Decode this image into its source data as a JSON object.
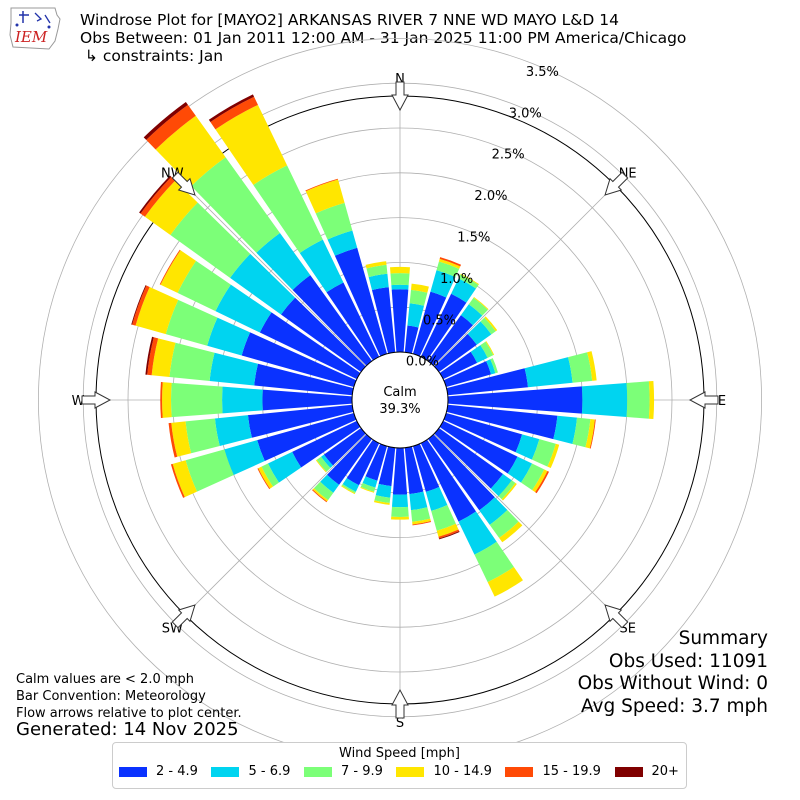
{
  "header": {
    "logo_text": "IEM",
    "title_line1": "Windrose Plot for [MAYO2] ARKANSAS RIVER 7 NNE WD MAYO L&D 14",
    "title_line2": "Obs Between: 01 Jan 2011 12:00 AM - 31 Jan 2025 11:00 PM America/Chicago",
    "title_line3": " ↳ constraints: Jan"
  },
  "notes": {
    "line1": "Calm values are < 2.0 mph",
    "line2": "Bar Convention: Meteorology",
    "line3": "Flow arrows relative to plot center.",
    "generated": "Generated: 14 Nov 2025"
  },
  "summary": {
    "heading": "Summary",
    "obs_used": "Obs Used: 11091",
    "obs_without_wind": "Obs Without Wind: 0",
    "avg_speed": "Avg Speed: 3.7 mph"
  },
  "legend": {
    "title": "Wind Speed [mph]",
    "items": [
      {
        "label": "2 - 4.9",
        "color": "#0a32ff"
      },
      {
        "label": "5 - 6.9",
        "color": "#00d4f0"
      },
      {
        "label": "7 - 9.9",
        "color": "#7cff78"
      },
      {
        "label": "10 - 14.9",
        "color": "#ffe600"
      },
      {
        "label": "15 - 19.9",
        "color": "#ff4a06"
      },
      {
        "label": "20+",
        "color": "#800000"
      }
    ]
  },
  "chart_data": {
    "type": "windrose",
    "calm_label": "Calm",
    "calm_value": "39.3%",
    "radial_ticks": [
      "0.0%",
      "0.5%",
      "1.0%",
      "1.5%",
      "2.0%",
      "2.5%",
      "3.0%",
      "3.5%"
    ],
    "radial_max": 3.5,
    "compass_labels": [
      "N",
      "NE",
      "E",
      "SE",
      "S",
      "SW",
      "W",
      "NW"
    ],
    "speed_bins": [
      "2 - 4.9",
      "5 - 6.9",
      "7 - 9.9",
      "10 - 14.9",
      "15 - 19.9",
      "20+"
    ],
    "colors": [
      "#0a32ff",
      "#00d4f0",
      "#7cff78",
      "#ffe600",
      "#ff4a06",
      "#800000"
    ],
    "directions": [
      0,
      10,
      20,
      30,
      40,
      50,
      60,
      70,
      80,
      90,
      100,
      110,
      120,
      130,
      140,
      150,
      160,
      170,
      180,
      190,
      200,
      210,
      220,
      230,
      240,
      250,
      260,
      270,
      280,
      290,
      300,
      310,
      320,
      330,
      340,
      350
    ],
    "stacked_percent": [
      [
        0.7,
        0.75,
        0.88,
        0.95,
        0.95,
        0.95
      ],
      [
        0.3,
        0.55,
        0.7,
        0.77,
        0.77,
        0.77
      ],
      [
        0.72,
        0.97,
        1.07,
        1.1,
        1.12,
        1.12
      ],
      [
        0.78,
        0.97,
        1.02,
        1.03,
        1.03,
        1.03
      ],
      [
        0.63,
        0.78,
        0.87,
        0.88,
        0.88,
        0.88
      ],
      [
        0.52,
        0.72,
        0.78,
        0.8,
        0.8,
        0.8
      ],
      [
        0.42,
        0.55,
        0.62,
        0.63,
        0.63,
        0.63
      ],
      [
        0.52,
        0.57,
        0.6,
        0.6,
        0.6,
        0.6
      ],
      [
        0.9,
        1.4,
        1.62,
        1.67,
        1.67,
        1.67
      ],
      [
        1.5,
        2.0,
        2.25,
        2.3,
        2.3,
        2.3
      ],
      [
        1.23,
        1.45,
        1.6,
        1.65,
        1.66,
        1.66
      ],
      [
        0.88,
        1.08,
        1.27,
        1.31,
        1.31,
        1.31
      ],
      [
        0.92,
        1.1,
        1.25,
        1.29,
        1.31,
        1.31
      ],
      [
        0.88,
        1.0,
        1.05,
        1.07,
        1.07,
        1.07
      ],
      [
        0.98,
        1.18,
        1.36,
        1.42,
        1.42,
        1.42
      ],
      [
        0.97,
        1.38,
        1.72,
        1.9,
        1.9,
        1.9
      ],
      [
        0.53,
        0.75,
        0.98,
        1.05,
        1.07,
        1.08
      ],
      [
        0.52,
        0.7,
        0.83,
        0.86,
        0.87,
        0.87
      ],
      [
        0.52,
        0.66,
        0.77,
        0.8,
        0.8,
        0.8
      ],
      [
        0.43,
        0.56,
        0.62,
        0.64,
        0.64,
        0.64
      ],
      [
        0.4,
        0.48,
        0.53,
        0.54,
        0.54,
        0.54
      ],
      [
        0.52,
        0.6,
        0.62,
        0.63,
        0.63,
        0.63
      ],
      [
        0.63,
        0.74,
        0.84,
        0.86,
        0.87,
        0.87
      ],
      [
        0.51,
        0.55,
        0.61,
        0.62,
        0.62,
        0.62
      ],
      [
        0.8,
        1.1,
        1.18,
        1.22,
        1.23,
        1.23
      ],
      [
        1.12,
        1.5,
        1.95,
        2.1,
        2.12,
        2.12
      ],
      [
        1.17,
        1.54,
        1.87,
        2.03,
        2.06,
        2.06
      ],
      [
        1.0,
        1.45,
        2.02,
        2.12,
        2.14,
        2.14
      ],
      [
        1.1,
        1.6,
        2.05,
        2.25,
        2.3,
        2.32
      ],
      [
        1.3,
        1.7,
        2.18,
        2.53,
        2.57,
        2.58
      ],
      [
        1.2,
        1.75,
        2.22,
        2.43,
        2.44,
        2.44
      ],
      [
        1.1,
        1.8,
        2.62,
        2.97,
        3.03,
        3.05
      ],
      [
        1.18,
        1.76,
        2.8,
        3.37,
        3.52,
        3.56
      ],
      [
        0.92,
        1.45,
        2.37,
        3.12,
        3.22,
        3.25
      ],
      [
        1.23,
        1.43,
        1.75,
        2.02,
        2.03,
        2.03
      ],
      [
        0.73,
        0.88,
        0.98,
        1.02,
        1.02,
        1.02
      ]
    ]
  }
}
